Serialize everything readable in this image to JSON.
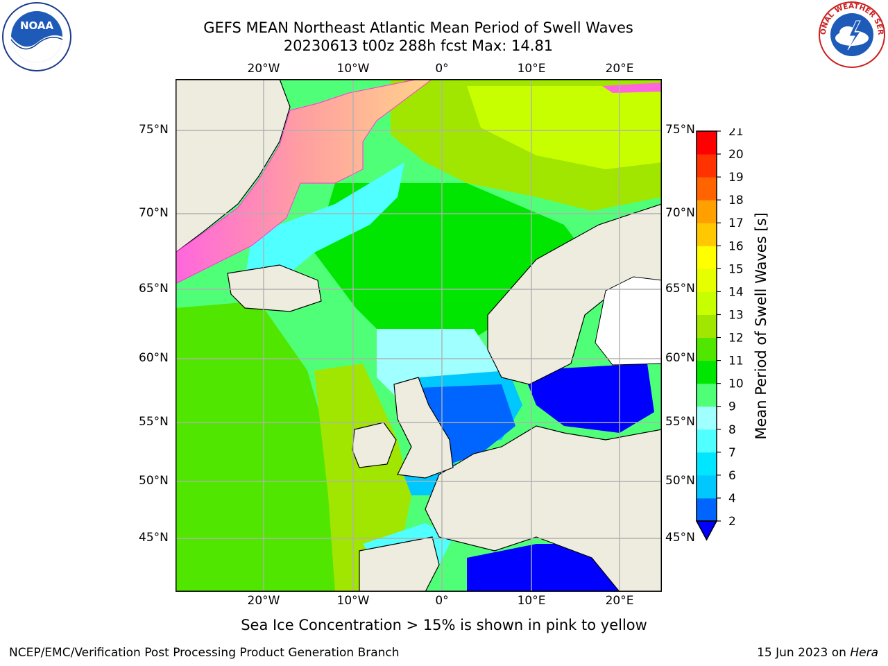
{
  "title": {
    "line1": "GEFS MEAN Northeast Atlantic Mean Period of Swell Waves",
    "line2": "20230613 t00z 288h fcst   Max: 14.81"
  },
  "map": {
    "lon_labels": [
      "20°W",
      "10°W",
      "0°",
      "10°E",
      "20°E"
    ],
    "lat_labels": [
      "75°N",
      "70°N",
      "65°N",
      "60°N",
      "55°N",
      "50°N",
      "45°N"
    ],
    "land_color": "#eeecdf",
    "grid_color": "#b0b0b0"
  },
  "colorbar": {
    "label": "Mean Period of Swell Waves [s]",
    "ticks": [
      "2",
      "4",
      "6",
      "7",
      "8",
      "9",
      "10",
      "11",
      "12",
      "13",
      "14",
      "15",
      "16",
      "17",
      "18",
      "19",
      "20",
      "21"
    ],
    "colors": [
      "#0000ff",
      "#0064ff",
      "#00c8ff",
      "#00e6ff",
      "#50ffff",
      "#a0ffff",
      "#50ff78",
      "#00e600",
      "#50e600",
      "#a0e600",
      "#c8ff00",
      "#e6ff00",
      "#ffff00",
      "#ffc800",
      "#ffa000",
      "#ff6400",
      "#ff3200",
      "#ff0000"
    ]
  },
  "note": "Sea Ice Concentration > 15% is shown in pink to yellow",
  "footer": {
    "credit": "NCEP/EMC/Verification Post Processing Product Generation Branch",
    "date_prefix": "15 Jun 2023 on",
    "machine": "Hera"
  },
  "logos": {
    "noaa_text": "NOAA",
    "nws_text": "NATIONAL WEATHER SERVICE"
  }
}
